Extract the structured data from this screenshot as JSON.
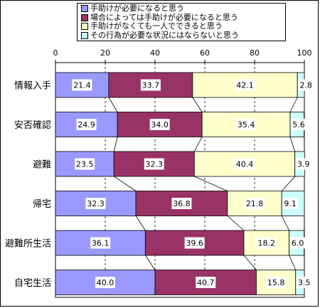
{
  "chart_data": {
    "type": "bar",
    "stacked": true,
    "orientation": "horizontal",
    "categories": [
      "情報入手",
      "安否確認",
      "避難",
      "帰宅",
      "避難所生活",
      "自宅生活"
    ],
    "series": [
      {
        "name": "手助けが必要になると思う",
        "color": "#9999ff",
        "values": [
          21.4,
          24.9,
          23.5,
          32.3,
          36.1,
          40.0
        ]
      },
      {
        "name": "場合によっては手助けが必要になると思う",
        "color": "#993366",
        "values": [
          33.7,
          34.0,
          32.3,
          36.8,
          39.6,
          40.7
        ]
      },
      {
        "name": "手助けがなくても一人でできると思う",
        "color": "#ffffcc",
        "values": [
          42.1,
          35.4,
          40.4,
          21.8,
          18.2,
          15.8
        ]
      },
      {
        "name": "その行為が必要な状況にはならないと思う",
        "color": "#ccffff",
        "values": [
          2.8,
          5.6,
          3.9,
          9.1,
          6.0,
          3.5
        ]
      }
    ],
    "xlim": [
      0,
      100
    ],
    "xticks": [
      "0",
      "20",
      "40",
      "60",
      "80",
      "100"
    ],
    "grid": true,
    "legend_position": "top"
  }
}
